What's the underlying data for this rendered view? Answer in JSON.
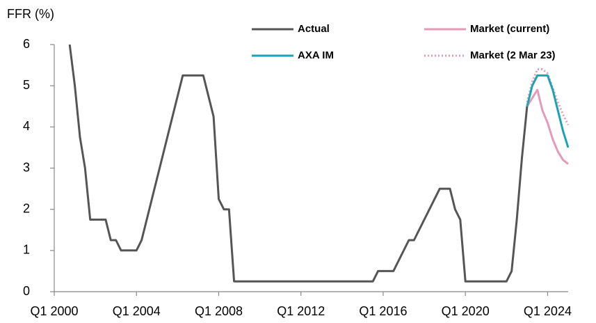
{
  "chart_data": {
    "type": "line",
    "y_label": "FFR (%)",
    "xlim": [
      2000,
      2025
    ],
    "xticks": [
      {
        "value": 2000,
        "label": "Q1 2000"
      },
      {
        "value": 2004,
        "label": "Q1 2004"
      },
      {
        "value": 2008,
        "label": "Q1 2008"
      },
      {
        "value": 2012,
        "label": "Q1 2012"
      },
      {
        "value": 2016,
        "label": "Q1 2016"
      },
      {
        "value": 2020,
        "label": "Q1 2020"
      },
      {
        "value": 2024,
        "label": "Q1 2024"
      }
    ],
    "ylim": [
      0,
      6
    ],
    "yticks": [
      0,
      1,
      2,
      3,
      4,
      5,
      6
    ],
    "grid": false,
    "legend": "top",
    "series": [
      {
        "name": "Actual",
        "color": "#555555",
        "dash": "solid",
        "x": [
          2000.75,
          2001,
          2001.25,
          2001.5,
          2001.75,
          2002,
          2002.25,
          2002.5,
          2002.75,
          2003,
          2003.25,
          2003.5,
          2003.75,
          2004,
          2004.25,
          2004.5,
          2004.75,
          2005,
          2005.25,
          2005.5,
          2005.75,
          2006,
          2006.25,
          2006.5,
          2006.75,
          2007,
          2007.25,
          2007.75,
          2008,
          2008.25,
          2008.5,
          2008.75,
          2015.5,
          2015.75,
          2016.5,
          2017.25,
          2017.5,
          2018.75,
          2019.25,
          2019.5,
          2019.75,
          2020,
          2022,
          2022.25,
          2022.5,
          2022.75,
          2023
        ],
        "values": [
          6,
          5,
          3.75,
          3,
          1.75,
          1.75,
          1.75,
          1.75,
          1.25,
          1.25,
          1,
          1,
          1,
          1,
          1.25,
          1.75,
          2.25,
          2.75,
          3.25,
          3.75,
          4.25,
          4.75,
          5.25,
          5.25,
          5.25,
          5.25,
          5.25,
          4.25,
          2.25,
          2,
          2,
          0.25,
          0.25,
          0.5,
          0.5,
          1.25,
          1.25,
          2.5,
          2.5,
          2,
          1.75,
          0.25,
          0.25,
          0.5,
          1.75,
          3.25,
          4.5
        ]
      },
      {
        "name": "Market (current)",
        "color": "#e59ab8",
        "dash": "solid",
        "x": [
          2023,
          2023.25,
          2023.5,
          2023.75,
          2024,
          2024.25,
          2024.5,
          2024.75,
          2025
        ],
        "values": [
          4.5,
          4.7,
          4.9,
          4.4,
          4.1,
          3.7,
          3.4,
          3.2,
          3.1
        ]
      },
      {
        "name": "AXA IM",
        "color": "#1aa3b5",
        "dash": "solid",
        "x": [
          2023,
          2023.25,
          2023.5,
          2023.75,
          2024,
          2024.25,
          2024.5,
          2024.75,
          2025
        ],
        "values": [
          4.5,
          5,
          5.25,
          5.25,
          5.25,
          4.9,
          4.4,
          3.9,
          3.5
        ]
      },
      {
        "name": "Market (2 Mar 23)",
        "color": "#e59ab8",
        "dash": "dotted",
        "x": [
          2023,
          2023.25,
          2023.5,
          2023.75,
          2024,
          2024.25,
          2024.5,
          2024.75,
          2025
        ],
        "values": [
          4.6,
          5.1,
          5.4,
          5.4,
          5.3,
          4.95,
          4.6,
          4.3,
          4.05
        ]
      }
    ]
  }
}
